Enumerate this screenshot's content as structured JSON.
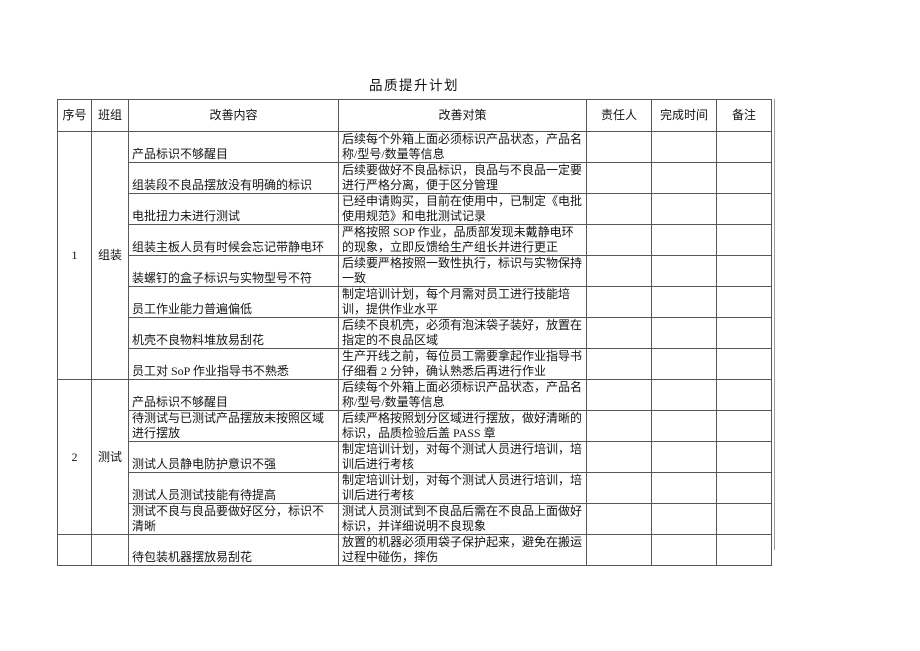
{
  "doc": {
    "title": "品质提升计划"
  },
  "colors": {
    "ink": "#141414",
    "border": "#575757",
    "background": "#ffffff"
  },
  "table": {
    "columns": [
      "序号",
      "班组",
      "改善内容",
      "改善对策",
      "责任人",
      "完成时间",
      "备注"
    ],
    "sections": [
      {
        "no": "1",
        "team": "组装",
        "rows": [
          {
            "content": "产品标识不够醒目",
            "measure": "后续每个外箱上面必须标识产品状态，产品名称/型号/数量等信息",
            "owner": "",
            "time": "",
            "note": ""
          },
          {
            "content": "组装段不良品摆放没有明确的标识",
            "measure": "后续要做好不良品标识，良品与不良品一定要进行严格分离，便于区分管理",
            "owner": "",
            "time": "",
            "note": ""
          },
          {
            "content": "电批扭力未进行测试",
            "measure": "已经申请购买，目前在使用中，已制定《电批使用规范》和电批测试记录",
            "owner": "",
            "time": "",
            "note": ""
          },
          {
            "content": "组装主板人员有时候会忘记带静电环",
            "measure": "严格按照 SOP 作业，品质部发现未戴静电环的现象，立即反馈给生产组长并进行更正",
            "owner": "",
            "time": "",
            "note": ""
          },
          {
            "content": "装螺钉的盒子标识与实物型号不符",
            "measure": "后续要严格按照一致性执行，标识与实物保持一致",
            "owner": "",
            "time": "",
            "note": ""
          },
          {
            "content": "员工作业能力普遍偏低",
            "measure": "制定培训计划，每个月需对员工进行技能培训，提供作业水平",
            "owner": "",
            "time": "",
            "note": ""
          },
          {
            "content": "机壳不良物料堆放易刮花",
            "measure": "后续不良机壳，必须有泡沫袋子装好，放置在指定的不良品区域",
            "owner": "",
            "time": "",
            "note": ""
          },
          {
            "content": "员工对 SoP 作业指导书不熟悉",
            "measure": "生产开线之前，每位员工需要拿起作业指导书仔细看 2 分钟，确认熟悉后再进行作业",
            "owner": "",
            "time": "",
            "note": ""
          }
        ]
      },
      {
        "no": "2",
        "team": "测试",
        "rows": [
          {
            "content": "产品标识不够醒目",
            "measure": "后续每个外箱上面必须标识产品状态，产品名称/型号/数量等信息",
            "owner": "",
            "time": "",
            "note": ""
          },
          {
            "content": "待测试与已测试产品摆放未按照区域进行摆放",
            "measure": "后续严格按照划分区域进行摆放，做好清晰的标识，品质检验后盖 PASS 章",
            "owner": "",
            "time": "",
            "note": ""
          },
          {
            "content": "测试人员静电防护意识不强",
            "measure": "制定培训计划，对每个测试人员进行培训，培训后进行考核",
            "owner": "",
            "time": "",
            "note": ""
          },
          {
            "content": "测试人员测试技能有待提高",
            "measure": "制定培训计划，对每个测试人员进行培训，培训后进行考核",
            "owner": "",
            "time": "",
            "note": ""
          },
          {
            "content": "测试不良与良品要做好区分，标识不清晰",
            "measure": "测试人员测试到不良品后需在不良品上面做好标识，并详细说明不良现象",
            "owner": "",
            "time": "",
            "note": ""
          }
        ]
      },
      {
        "no": "",
        "team": "",
        "rows": [
          {
            "content": "待包装机器摆放易刮花",
            "measure": "放置的机器必须用袋子保护起来，避免在搬运过程中碰伤，摔伤",
            "owner": "",
            "time": "",
            "note": ""
          }
        ]
      }
    ]
  }
}
